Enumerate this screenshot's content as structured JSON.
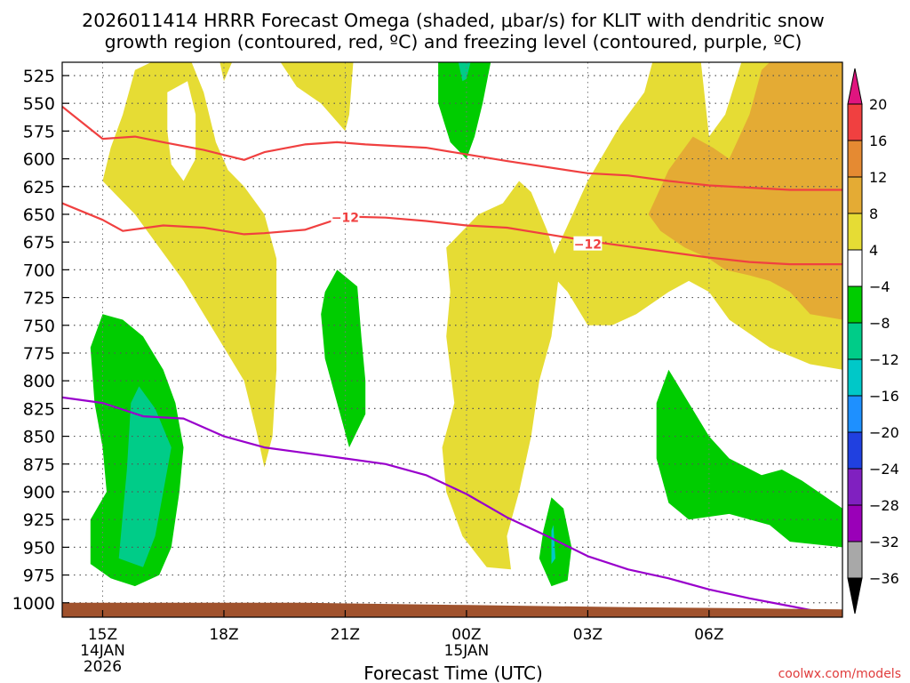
{
  "chart_data": {
    "type": "contour",
    "title_line1": "2026011414 HRRR Forecast Omega (shaded, μbar/s) for KLIT with dendritic snow",
    "title_line2": "growth region (contoured, red, ºC) and freezing level (contoured, purple, ºC)",
    "xlabel": "Forecast Time (UTC)",
    "ylabel": "",
    "credit": "coolwx.com/models",
    "x_range": [
      14.0,
      33.3
    ],
    "y_range": [
      513,
      1013
    ],
    "x_ticks": [
      {
        "h": 15,
        "label": "15Z",
        "sub1": "14JAN",
        "sub2": "2026"
      },
      {
        "h": 18,
        "label": "18Z",
        "sub1": "",
        "sub2": ""
      },
      {
        "h": 21,
        "label": "21Z",
        "sub1": "",
        "sub2": ""
      },
      {
        "h": 24,
        "label": "00Z",
        "sub1": "15JAN",
        "sub2": ""
      },
      {
        "h": 27,
        "label": "03Z",
        "sub1": "",
        "sub2": ""
      },
      {
        "h": 30,
        "label": "06Z",
        "sub1": "",
        "sub2": ""
      }
    ],
    "y_ticks": [
      "525",
      "550",
      "575",
      "600",
      "625",
      "650",
      "675",
      "700",
      "725",
      "750",
      "775",
      "800",
      "825",
      "850",
      "875",
      "900",
      "925",
      "950",
      "975",
      "1000"
    ],
    "colorbar": {
      "levels": [
        "20",
        "16",
        "12",
        "8",
        "4",
        "−4",
        "−8",
        "−12",
        "−16",
        "−20",
        "−24",
        "−28",
        "−32",
        "−36"
      ],
      "colors": [
        "#f04040",
        "#e58a32",
        "#e4ab34",
        "#e6dc34",
        "#ffffff",
        "#00cc00",
        "#00cc88",
        "#00c8c8",
        "#1e90ff",
        "#2040e0",
        "#8020c0",
        "#9a00b8",
        "#a8a8a8"
      ],
      "top_arrow_color": "#e0157f",
      "bottom_arrow_color": "#000000"
    },
    "palette": {
      "yellow": "#e6dc34",
      "orange": "#e4ab34",
      "green": "#00cc00",
      "teal": "#00cc88",
      "cyan": "#00c8c8",
      "terrain": "#a0522d",
      "dgz_line": "#f04040",
      "freezing_line": "#9900cc"
    },
    "shaded_regions": [
      {
        "name": "yellow-upper-left",
        "color": "yellow",
        "points": [
          [
            15.0,
            620
          ],
          [
            15.2,
            590
          ],
          [
            15.5,
            560
          ],
          [
            15.8,
            520
          ],
          [
            16.2,
            513
          ],
          [
            17.2,
            513
          ],
          [
            17.5,
            540
          ],
          [
            17.8,
            585
          ],
          [
            18.1,
            610
          ],
          [
            18.5,
            625
          ],
          [
            19.0,
            650
          ],
          [
            19.3,
            690
          ],
          [
            19.3,
            740
          ],
          [
            19.3,
            790
          ],
          [
            19.2,
            850
          ],
          [
            19.0,
            878
          ],
          [
            18.8,
            845
          ],
          [
            18.5,
            800
          ],
          [
            18.0,
            770
          ],
          [
            17.5,
            740
          ],
          [
            17.0,
            710
          ],
          [
            16.6,
            690
          ],
          [
            16.2,
            670
          ],
          [
            15.8,
            650
          ],
          [
            15.4,
            635
          ]
        ]
      },
      {
        "name": "yellow-upper-left-notch",
        "color": "white",
        "points": [
          [
            16.6,
            540
          ],
          [
            17.1,
            530
          ],
          [
            17.3,
            560
          ],
          [
            17.3,
            600
          ],
          [
            17.0,
            620
          ],
          [
            16.7,
            605
          ],
          [
            16.6,
            575
          ]
        ]
      },
      {
        "name": "yellow-top-center",
        "color": "yellow",
        "points": [
          [
            19.4,
            513
          ],
          [
            21.2,
            513
          ],
          [
            21.1,
            560
          ],
          [
            21.0,
            575
          ],
          [
            20.4,
            550
          ],
          [
            19.8,
            535
          ]
        ]
      },
      {
        "name": "yellow-top-narrow",
        "color": "yellow",
        "points": [
          [
            17.9,
            513
          ],
          [
            18.2,
            513
          ],
          [
            18.0,
            530
          ]
        ]
      },
      {
        "name": "yellow-midright",
        "color": "yellow",
        "points": [
          [
            23.5,
            680
          ],
          [
            24.3,
            650
          ],
          [
            24.9,
            640
          ],
          [
            25.3,
            620
          ],
          [
            25.6,
            630
          ],
          [
            26.0,
            665
          ],
          [
            26.3,
            700
          ],
          [
            26.1,
            760
          ],
          [
            25.8,
            800
          ],
          [
            25.6,
            850
          ],
          [
            25.3,
            900
          ],
          [
            25.0,
            940
          ],
          [
            25.1,
            970
          ],
          [
            24.5,
            968
          ],
          [
            23.9,
            940
          ],
          [
            23.5,
            900
          ],
          [
            23.4,
            860
          ],
          [
            23.7,
            820
          ],
          [
            23.5,
            760
          ],
          [
            23.6,
            720
          ]
        ]
      },
      {
        "name": "yellow-right",
        "color": "yellow",
        "points": [
          [
            26.0,
            700
          ],
          [
            26.5,
            660
          ],
          [
            27.0,
            620
          ],
          [
            27.8,
            570
          ],
          [
            28.4,
            540
          ],
          [
            28.6,
            513
          ],
          [
            33.3,
            513
          ],
          [
            33.3,
            790
          ],
          [
            32.5,
            785
          ],
          [
            31.5,
            770
          ],
          [
            30.5,
            745
          ],
          [
            30.0,
            720
          ],
          [
            29.5,
            710
          ],
          [
            29.0,
            720
          ],
          [
            28.2,
            740
          ],
          [
            27.6,
            750
          ],
          [
            27.0,
            750
          ],
          [
            26.5,
            720
          ]
        ]
      },
      {
        "name": "yellow-right-notch",
        "color": "white",
        "points": [
          [
            29.8,
            513
          ],
          [
            30.8,
            513
          ],
          [
            30.4,
            560
          ],
          [
            30.0,
            580
          ]
        ]
      },
      {
        "name": "orange-right",
        "color": "orange",
        "points": [
          [
            28.5,
            650
          ],
          [
            29.0,
            610
          ],
          [
            29.6,
            580
          ],
          [
            30.1,
            590
          ],
          [
            30.5,
            600
          ],
          [
            31.0,
            560
          ],
          [
            31.3,
            520
          ],
          [
            31.5,
            513
          ],
          [
            33.3,
            513
          ],
          [
            33.3,
            745
          ],
          [
            32.5,
            740
          ],
          [
            32.0,
            720
          ],
          [
            31.5,
            710
          ],
          [
            31.0,
            705
          ],
          [
            30.4,
            700
          ],
          [
            30.0,
            690
          ],
          [
            29.4,
            680
          ],
          [
            28.8,
            665
          ]
        ]
      },
      {
        "name": "green-top",
        "color": "green",
        "points": [
          [
            23.3,
            513
          ],
          [
            24.6,
            513
          ],
          [
            24.4,
            550
          ],
          [
            24.2,
            580
          ],
          [
            24.0,
            600
          ],
          [
            23.6,
            585
          ],
          [
            23.3,
            550
          ]
        ]
      },
      {
        "name": "cyan-top",
        "color": "teal",
        "points": [
          [
            23.8,
            513
          ],
          [
            24.1,
            513
          ],
          [
            24.0,
            528
          ],
          [
            23.9,
            530
          ]
        ]
      },
      {
        "name": "green-center",
        "color": "green",
        "points": [
          [
            20.5,
            720
          ],
          [
            20.8,
            700
          ],
          [
            21.3,
            715
          ],
          [
            21.4,
            760
          ],
          [
            21.5,
            800
          ],
          [
            21.5,
            830
          ],
          [
            21.1,
            860
          ],
          [
            20.8,
            820
          ],
          [
            20.5,
            780
          ],
          [
            20.4,
            740
          ]
        ]
      },
      {
        "name": "green-left",
        "color": "green",
        "points": [
          [
            14.7,
            770
          ],
          [
            15.0,
            740
          ],
          [
            15.5,
            745
          ],
          [
            16.0,
            760
          ],
          [
            16.5,
            790
          ],
          [
            16.8,
            820
          ],
          [
            17.0,
            860
          ],
          [
            16.9,
            900
          ],
          [
            16.7,
            950
          ],
          [
            16.4,
            975
          ],
          [
            15.8,
            985
          ],
          [
            15.2,
            978
          ],
          [
            14.7,
            965
          ],
          [
            14.7,
            925
          ],
          [
            15.1,
            900
          ],
          [
            15.0,
            860
          ],
          [
            14.8,
            820
          ]
        ]
      },
      {
        "name": "teal-left",
        "color": "teal",
        "points": [
          [
            15.7,
            820
          ],
          [
            15.9,
            805
          ],
          [
            16.3,
            825
          ],
          [
            16.7,
            860
          ],
          [
            16.5,
            900
          ],
          [
            16.3,
            940
          ],
          [
            16.0,
            968
          ],
          [
            15.4,
            960
          ],
          [
            15.5,
            920
          ],
          [
            15.6,
            880
          ]
        ]
      },
      {
        "name": "green-bottom-small",
        "color": "green",
        "points": [
          [
            25.9,
            935
          ],
          [
            26.1,
            905
          ],
          [
            26.4,
            915
          ],
          [
            26.6,
            950
          ],
          [
            26.5,
            980
          ],
          [
            26.1,
            985
          ],
          [
            25.8,
            960
          ]
        ]
      },
      {
        "name": "green-bottom-right",
        "color": "green",
        "points": [
          [
            28.7,
            820
          ],
          [
            29.0,
            790
          ],
          [
            29.5,
            820
          ],
          [
            30.0,
            850
          ],
          [
            30.5,
            870
          ],
          [
            31.3,
            885
          ],
          [
            31.8,
            880
          ],
          [
            32.3,
            890
          ],
          [
            33.3,
            915
          ],
          [
            33.3,
            950
          ],
          [
            32.0,
            945
          ],
          [
            31.5,
            930
          ],
          [
            30.5,
            920
          ],
          [
            29.5,
            925
          ],
          [
            29.0,
            910
          ],
          [
            28.7,
            870
          ]
        ]
      },
      {
        "name": "cyan-bottom-small",
        "color": "cyan",
        "points": [
          [
            26.1,
            935
          ],
          [
            26.15,
            930
          ],
          [
            26.2,
            960
          ],
          [
            26.1,
            965
          ]
        ]
      }
    ],
    "lines": [
      {
        "name": "dgz-upper-line",
        "color": "dgz_line",
        "points": [
          [
            14.0,
            553
          ],
          [
            15.0,
            582
          ],
          [
            15.8,
            580
          ],
          [
            16.5,
            585
          ],
          [
            17.5,
            592
          ],
          [
            18.5,
            601
          ],
          [
            19.0,
            594
          ],
          [
            20.0,
            587
          ],
          [
            20.8,
            585
          ],
          [
            21.5,
            587
          ],
          [
            23.0,
            590
          ],
          [
            24.0,
            596
          ],
          [
            25.0,
            602
          ],
          [
            27.0,
            613
          ],
          [
            28.0,
            615
          ],
          [
            29.0,
            620
          ],
          [
            30.0,
            624
          ],
          [
            31.0,
            626
          ],
          [
            32.0,
            628
          ],
          [
            33.3,
            628
          ]
        ]
      },
      {
        "name": "dgz-lower-line",
        "color": "dgz_line",
        "points": [
          [
            14.0,
            640
          ],
          [
            15.0,
            655
          ],
          [
            15.5,
            665
          ],
          [
            16.5,
            660
          ],
          [
            17.5,
            662
          ],
          [
            18.5,
            668
          ],
          [
            19.0,
            667
          ],
          [
            20.0,
            664
          ],
          [
            21.0,
            652
          ],
          [
            22.0,
            653
          ],
          [
            23.0,
            656
          ],
          [
            24.0,
            660
          ],
          [
            25.0,
            662
          ],
          [
            26.0,
            668
          ],
          [
            27.0,
            674
          ],
          [
            28.0,
            679
          ],
          [
            29.0,
            684
          ],
          [
            30.0,
            689
          ],
          [
            31.0,
            693
          ],
          [
            32.0,
            695
          ],
          [
            33.3,
            695
          ]
        ]
      },
      {
        "name": "freezing-level-line",
        "color": "freezing_line",
        "points": [
          [
            14.0,
            815
          ],
          [
            15.0,
            820
          ],
          [
            16.0,
            832
          ],
          [
            17.0,
            834
          ],
          [
            18.0,
            850
          ],
          [
            19.0,
            860
          ],
          [
            20.0,
            865
          ],
          [
            21.0,
            870
          ],
          [
            22.0,
            875
          ],
          [
            23.0,
            885
          ],
          [
            24.0,
            902
          ],
          [
            25.0,
            923
          ],
          [
            26.0,
            940
          ],
          [
            27.0,
            958
          ],
          [
            28.0,
            970
          ],
          [
            29.0,
            978
          ],
          [
            30.0,
            988
          ],
          [
            31.0,
            996
          ],
          [
            32.0,
            1003
          ],
          [
            33.0,
            1010
          ]
        ]
      }
    ],
    "contour_labels": [
      {
        "text": "−12",
        "h": 21.0,
        "p": 653
      },
      {
        "text": "−12",
        "h": 27.0,
        "p": 677
      }
    ],
    "terrain": {
      "color": "terrain",
      "points": [
        [
          14.0,
          1013
        ],
        [
          14.0,
          1000
        ],
        [
          17.0,
          1000
        ],
        [
          20.0,
          1000
        ],
        [
          24.0,
          1002
        ],
        [
          28.0,
          1004
        ],
        [
          31.0,
          1005
        ],
        [
          33.3,
          1006
        ],
        [
          33.3,
          1013
        ]
      ]
    }
  }
}
